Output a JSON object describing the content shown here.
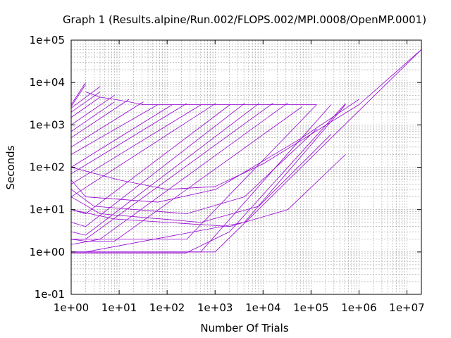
{
  "chart_data": {
    "type": "line",
    "title": "Graph 1 (Results.alpine/Run.002/FLOPS.002/MPI.0008/OpenMP.0001)",
    "xlabel": "Number Of Trials",
    "ylabel": "Seconds",
    "x_scale": "log",
    "y_scale": "log",
    "xlim": [
      1,
      20000000
    ],
    "ylim": [
      0.1,
      100000
    ],
    "x_ticks": [
      "1e+00",
      "1e+01",
      "1e+02",
      "1e+03",
      "1e+04",
      "1e+05",
      "1e+06",
      "1e+07"
    ],
    "y_ticks": [
      "1e-01",
      "1e+00",
      "1e+01",
      "1e+02",
      "1e+03",
      "1e+04",
      "1e+05"
    ],
    "x_tick_values": [
      1,
      10,
      100,
      1000,
      10000,
      100000,
      1000000,
      10000000
    ],
    "y_tick_values": [
      0.1,
      1,
      10,
      100,
      1000,
      10000,
      100000
    ],
    "grid": true,
    "legend": "none",
    "line_color": "#9400d3",
    "series": [
      {
        "x": [
          1,
          2
        ],
        "y": [
          3000,
          10000
        ]
      },
      {
        "x": [
          1,
          2
        ],
        "y": [
          2700,
          9000
        ]
      },
      {
        "x": [
          1,
          4
        ],
        "y": [
          2500,
          8000
        ]
      },
      {
        "x": [
          1,
          4
        ],
        "y": [
          2000,
          6000
        ]
      },
      {
        "x": [
          1,
          4
        ],
        "y": [
          1500,
          4500
        ]
      },
      {
        "x": [
          1,
          8
        ],
        "y": [
          1000,
          5000
        ]
      },
      {
        "x": [
          1,
          8
        ],
        "y": [
          700,
          3500
        ]
      },
      {
        "x": [
          1,
          16
        ],
        "y": [
          500,
          4000
        ]
      },
      {
        "x": [
          1,
          32
        ],
        "y": [
          300,
          3500
        ]
      },
      {
        "x": [
          1,
          64
        ],
        "y": [
          200,
          3000
        ]
      },
      {
        "x": [
          1,
          128
        ],
        "y": [
          100,
          3000
        ]
      },
      {
        "x": [
          1,
          256
        ],
        "y": [
          70,
          3200
        ]
      },
      {
        "x": [
          1,
          512
        ],
        "y": [
          40,
          3000
        ]
      },
      {
        "x": [
          1,
          1024
        ],
        "y": [
          20,
          3200
        ]
      },
      {
        "x": [
          1,
          2,
          2048
        ],
        "y": [
          10,
          8,
          3000
        ]
      },
      {
        "x": [
          1,
          2,
          4096
        ],
        "y": [
          5,
          4,
          3200
        ]
      },
      {
        "x": [
          1,
          2,
          8192
        ],
        "y": [
          3,
          2.5,
          3200
        ]
      },
      {
        "x": [
          1,
          2,
          16384
        ],
        "y": [
          2,
          2,
          3300
        ]
      },
      {
        "x": [
          1,
          2,
          4,
          32768
        ],
        "y": [
          2,
          2,
          2,
          3300
        ]
      },
      {
        "x": [
          1,
          2,
          8,
          65536
        ],
        "y": [
          2,
          1.8,
          1.8,
          2700
        ]
      },
      {
        "x": [
          1,
          4,
          256,
          131072
        ],
        "y": [
          1.5,
          2,
          2,
          3000
        ]
      },
      {
        "x": [
          1,
          4,
          500,
          262144
        ],
        "y": [
          1,
          1,
          1,
          3000
        ]
      },
      {
        "x": [
          1,
          250,
          2000,
          524288
        ],
        "y": [
          0.95,
          0.95,
          3,
          3200
        ]
      },
      {
        "x": [
          1,
          2,
          4096,
          524288
        ],
        "y": [
          1,
          1,
          5,
          3000
        ]
      },
      {
        "x": [
          1,
          1000,
          20000000
        ],
        "y": [
          1,
          1,
          60000
        ]
      },
      {
        "x": [
          1,
          10,
          100,
          1000,
          10000,
          100000,
          1000000,
          20000000
        ],
        "y": [
          100,
          50,
          30,
          35,
          120,
          600,
          3000,
          60000
        ]
      },
      {
        "x": [
          1,
          2,
          64,
          1024,
          65536,
          1000000
        ],
        "y": [
          50,
          20,
          15,
          30,
          500,
          4000
        ]
      },
      {
        "x": [
          1,
          3,
          256,
          4096,
          131072
        ],
        "y": [
          30,
          12,
          8,
          20,
          800
        ]
      },
      {
        "x": [
          1,
          4,
          512,
          8192,
          262144
        ],
        "y": [
          20,
          8,
          5,
          12,
          600
        ]
      },
      {
        "x": [
          1,
          8,
          2048,
          32768,
          524288
        ],
        "y": [
          10,
          6,
          4,
          10,
          200
        ]
      },
      {
        "x": [
          2,
          4,
          8,
          16,
          32,
          64,
          128,
          256,
          512,
          1024,
          2048,
          4096,
          8192,
          16384,
          32768,
          65536,
          131072
        ],
        "y": [
          6000,
          4500,
          4000,
          3500,
          3000,
          3000,
          3000,
          3000,
          3000,
          3000,
          3000,
          3000,
          3000,
          3000,
          3000,
          3000,
          3000
        ]
      }
    ]
  }
}
